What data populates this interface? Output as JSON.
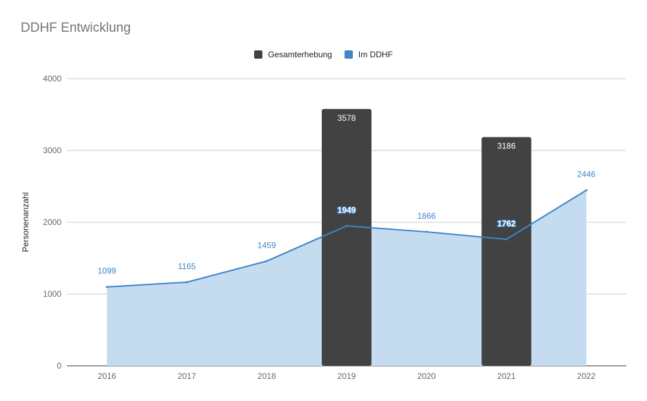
{
  "chart_data": {
    "type": "bar+area",
    "title": "DDHF Entwicklung",
    "xlabel": "",
    "ylabel": "Personenanzahl",
    "ylim": [
      0,
      4000
    ],
    "yticks": [
      0,
      1000,
      2000,
      3000,
      4000
    ],
    "categories": [
      "2016",
      "2017",
      "2018",
      "2019",
      "2020",
      "2021",
      "2022"
    ],
    "legend_position": "top-center",
    "grid": true,
    "series": [
      {
        "name": "Gesamterhebung",
        "type": "bar",
        "color": "#424242",
        "values": [
          null,
          null,
          null,
          3578,
          null,
          3186,
          null
        ]
      },
      {
        "name": "Im DDHF",
        "type": "area",
        "color": "#3d85c6",
        "fill": "#c5dbf0",
        "values": [
          1099,
          1165,
          1459,
          1949,
          1866,
          1762,
          2446
        ]
      }
    ]
  }
}
